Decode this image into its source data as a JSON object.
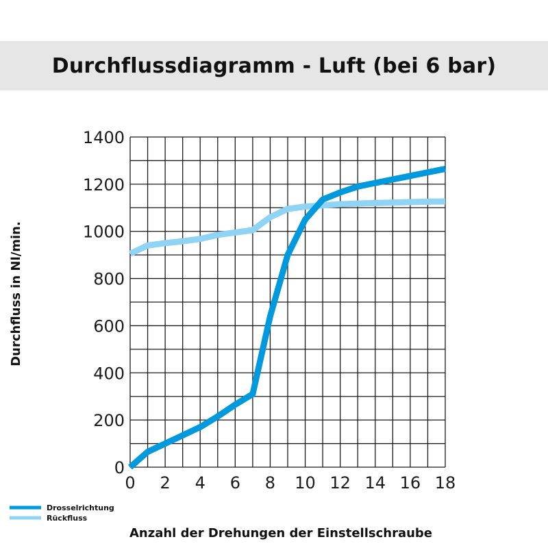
{
  "chart_data": {
    "type": "line",
    "title": "Durchflussdiagramm - Luft (bei 6 bar)",
    "xlabel": "Anzahl der Drehungen der Einstellschraube",
    "ylabel": "Durchfluss in Nl/min.",
    "xlim": [
      0,
      18
    ],
    "ylim": [
      0,
      1400
    ],
    "x_ticks": [
      0,
      2,
      4,
      6,
      8,
      10,
      12,
      14,
      16,
      18
    ],
    "y_ticks": [
      0,
      200,
      400,
      600,
      800,
      1000,
      1200,
      1400
    ],
    "grid": true,
    "legend_position": "bottom-left",
    "series": [
      {
        "name": "Drosselrichtung",
        "color": "#0099dd",
        "x": [
          0,
          1,
          2,
          3,
          4,
          5,
          6,
          7,
          8,
          9,
          10,
          11,
          12,
          13,
          14,
          15,
          16,
          17,
          18
        ],
        "y": [
          0,
          65,
          100,
          135,
          170,
          215,
          265,
          310,
          640,
          900,
          1050,
          1135,
          1165,
          1190,
          1205,
          1220,
          1235,
          1250,
          1265
        ]
      },
      {
        "name": "Rückfluss",
        "color": "#8fd3f5",
        "x": [
          0,
          1,
          2,
          3,
          4,
          5,
          6,
          7,
          8,
          9,
          10,
          11,
          12,
          13,
          14,
          15,
          16,
          17,
          18
        ],
        "y": [
          905,
          940,
          950,
          958,
          968,
          985,
          995,
          1005,
          1060,
          1095,
          1105,
          1110,
          1115,
          1118,
          1120,
          1122,
          1124,
          1126,
          1127
        ]
      }
    ]
  }
}
